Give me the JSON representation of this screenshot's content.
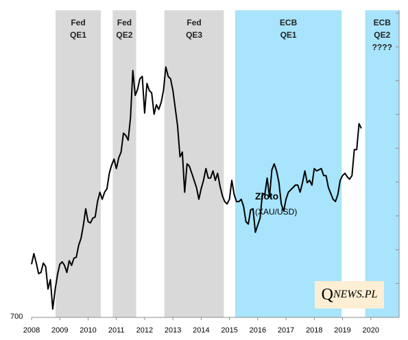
{
  "chart_data": {
    "type": "line",
    "title": "",
    "xlabel": "",
    "ylabel": "",
    "x_ticks": [
      "2008",
      "2009",
      "2010",
      "2011",
      "2012",
      "2013",
      "2014",
      "2015",
      "2016",
      "2017",
      "2018",
      "2019",
      "2020"
    ],
    "y_ticks": [
      "700"
    ],
    "xlim": [
      2008.0,
      2021.0
    ],
    "ylim": [
      700,
      2000
    ],
    "grid": false,
    "series": [
      {
        "name": "Złoto",
        "label_main": "Złoto",
        "label_sub": "(XAU/USD)",
        "color": "#000000",
        "x": [
          2008.0,
          2008.083,
          2008.167,
          2008.25,
          2008.333,
          2008.417,
          2008.5,
          2008.583,
          2008.667,
          2008.75,
          2008.833,
          2008.917,
          2009.0,
          2009.083,
          2009.167,
          2009.25,
          2009.333,
          2009.417,
          2009.5,
          2009.583,
          2009.667,
          2009.75,
          2009.833,
          2009.917,
          2010.0,
          2010.083,
          2010.167,
          2010.25,
          2010.333,
          2010.417,
          2010.5,
          2010.583,
          2010.667,
          2010.75,
          2010.833,
          2010.917,
          2011.0,
          2011.083,
          2011.167,
          2011.25,
          2011.333,
          2011.417,
          2011.5,
          2011.583,
          2011.667,
          2011.75,
          2011.833,
          2011.917,
          2012.0,
          2012.083,
          2012.167,
          2012.25,
          2012.333,
          2012.417,
          2012.5,
          2012.583,
          2012.667,
          2012.75,
          2012.833,
          2012.917,
          2013.0,
          2013.083,
          2013.167,
          2013.25,
          2013.333,
          2013.417,
          2013.5,
          2013.583,
          2013.667,
          2013.75,
          2013.833,
          2013.917,
          2014.0,
          2014.083,
          2014.167,
          2014.25,
          2014.333,
          2014.417,
          2014.5,
          2014.583,
          2014.667,
          2014.75,
          2014.833,
          2014.917,
          2015.0,
          2015.083,
          2015.167,
          2015.25,
          2015.333,
          2015.417,
          2015.5,
          2015.583,
          2015.667,
          2015.75,
          2015.833,
          2015.917,
          2016.0,
          2016.083,
          2016.167,
          2016.25,
          2016.333,
          2016.417,
          2016.5,
          2016.583,
          2016.667,
          2016.75,
          2016.833,
          2016.917,
          2017.0,
          2017.083,
          2017.167,
          2017.25,
          2017.333,
          2017.417,
          2017.5,
          2017.583,
          2017.667,
          2017.75,
          2017.833,
          2017.917,
          2018.0,
          2018.083,
          2018.167,
          2018.25,
          2018.333,
          2018.417,
          2018.5,
          2018.583,
          2018.667,
          2018.75,
          2018.833,
          2018.917,
          2019.0,
          2019.083,
          2019.167,
          2019.25,
          2019.333,
          2019.417,
          2019.5,
          2019.583,
          2019.667
        ],
        "values": [
          925,
          970,
          930,
          885,
          890,
          930,
          915,
          820,
          860,
          735,
          815,
          880,
          925,
          935,
          920,
          890,
          940,
          920,
          950,
          955,
          1005,
          1035,
          1090,
          1160,
          1105,
          1100,
          1120,
          1125,
          1190,
          1230,
          1200,
          1230,
          1245,
          1310,
          1345,
          1370,
          1330,
          1375,
          1400,
          1480,
          1470,
          1450,
          1545,
          1745,
          1640,
          1665,
          1710,
          1720,
          1565,
          1690,
          1660,
          1650,
          1560,
          1600,
          1580,
          1610,
          1660,
          1760,
          1720,
          1710,
          1660,
          1585,
          1510,
          1380,
          1400,
          1230,
          1350,
          1340,
          1310,
          1280,
          1250,
          1200,
          1245,
          1280,
          1330,
          1290,
          1290,
          1320,
          1280,
          1310,
          1255,
          1215,
          1190,
          1180,
          1200,
          1280,
          1220,
          1190,
          1190,
          1200,
          1170,
          1105,
          1095,
          1155,
          1160,
          1060,
          1090,
          1120,
          1225,
          1220,
          1290,
          1210,
          1325,
          1350,
          1320,
          1270,
          1180,
          1150,
          1200,
          1230,
          1240,
          1250,
          1260,
          1260,
          1230,
          1270,
          1320,
          1270,
          1280,
          1260,
          1330,
          1320,
          1325,
          1330,
          1300,
          1300,
          1250,
          1225,
          1200,
          1190,
          1220,
          1280,
          1300,
          1310,
          1295,
          1285,
          1300,
          1410,
          1410,
          1520,
          1500
        ]
      }
    ],
    "bands": [
      {
        "name": "Fed QE1",
        "line1": "Fed",
        "line2": "QE1",
        "line3": "",
        "x_start": 2008.85,
        "x_end": 2010.45,
        "color": "#d9d9d9"
      },
      {
        "name": "Fed QE2",
        "line1": "Fed",
        "line2": "QE2",
        "line3": "",
        "x_start": 2010.87,
        "x_end": 2011.7,
        "color": "#d9d9d9"
      },
      {
        "name": "Fed QE3",
        "line1": "Fed",
        "line2": "QE3",
        "line3": "",
        "x_start": 2012.7,
        "x_end": 2014.8,
        "color": "#d9d9d9"
      },
      {
        "name": "ECB QE1",
        "line1": "ECB",
        "line2": "QE1",
        "line3": "",
        "x_start": 2015.2,
        "x_end": 2018.97,
        "color": "#a8e4fb"
      },
      {
        "name": "ECB QE2",
        "line1": "ECB",
        "line2": "QE2",
        "line3": "????",
        "x_start": 2019.8,
        "x_end": 2021.0,
        "color": "#a8e4fb"
      }
    ]
  },
  "logo": {
    "big": "Q",
    "small": "NEWS.PL"
  }
}
